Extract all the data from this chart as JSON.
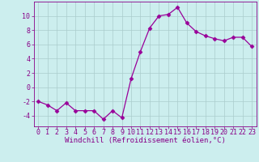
{
  "x": [
    0,
    1,
    2,
    3,
    4,
    5,
    6,
    7,
    8,
    9,
    10,
    11,
    12,
    13,
    14,
    15,
    16,
    17,
    18,
    19,
    20,
    21,
    22,
    23
  ],
  "y": [
    -2,
    -2.5,
    -3.3,
    -2.2,
    -3.3,
    -3.3,
    -3.3,
    -4.5,
    -3.3,
    -4.3,
    1.2,
    5.0,
    8.3,
    10.0,
    10.2,
    11.2,
    9.0,
    7.8,
    7.2,
    6.8,
    6.5,
    7.0,
    7.0,
    5.7
  ],
  "line_color": "#990099",
  "marker": "D",
  "marker_size": 2.5,
  "bg_color": "#cceeee",
  "grid_color": "#aacccc",
  "xlabel": "Windchill (Refroidissement éolien,°C)",
  "xlim": [
    -0.5,
    23.5
  ],
  "ylim": [
    -5.5,
    12
  ],
  "xtick_labels": [
    "0",
    "1",
    "2",
    "3",
    "4",
    "5",
    "6",
    "7",
    "8",
    "9",
    "10",
    "11",
    "12",
    "13",
    "14",
    "15",
    "16",
    "17",
    "18",
    "19",
    "20",
    "21",
    "22",
    "23"
  ],
  "ytick_values": [
    -4,
    -2,
    0,
    2,
    4,
    6,
    8,
    10
  ],
  "text_color": "#880088",
  "xlabel_fontsize": 6.5,
  "tick_fontsize": 6.0
}
